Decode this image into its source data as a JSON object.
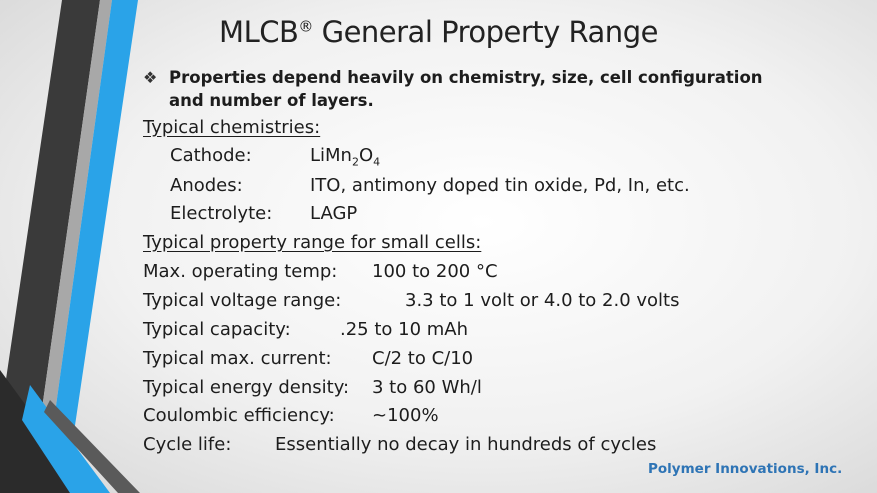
{
  "title": "MLCB",
  "title_mark": "®",
  "title_rest": " General Property Range",
  "bullet_text": "Properties depend heavily on chemistry, size, cell configuration and number of layers.",
  "chem_heading": "Typical chemistries:",
  "chemistries": {
    "cathode_label": "Cathode:",
    "cathode_base": "LiMn",
    "cathode_sub1": "2",
    "cathode_mid": "O",
    "cathode_sub2": "4",
    "anodes_label": "Anodes:",
    "anodes_value": "ITO, antimony doped tin oxide, Pd, In, etc.",
    "electrolyte_label": "Electrolyte:",
    "electrolyte_value": "LAGP"
  },
  "property_heading": "Typical property range for small cells:",
  "properties": [
    {
      "label": "Max. operating temp:",
      "value": "100 to 200 °C"
    },
    {
      "label": "Typical voltage range:",
      "value": "3.3 to 1 volt or 4.0 to 2.0 volts"
    },
    {
      "label": "Typical capacity:",
      "value": ".25 to 10 mAh"
    },
    {
      "label": "Typical max. current:",
      "value": "C/2 to C/10"
    },
    {
      "label": "Typical energy density:",
      "value": "3 to 60 Wh/l"
    },
    {
      "label": "Coulombic efficiency:",
      "value": "~100%"
    },
    {
      "label": "Cycle life:",
      "value": "Essentially no decay in hundreds of cycles"
    }
  ],
  "footer": "Polymer Innovations, Inc.",
  "colors": {
    "accent_blue": "#2aa3e8",
    "dark_bar": "#3c3c3c",
    "footer_blue": "#2e74b5"
  }
}
